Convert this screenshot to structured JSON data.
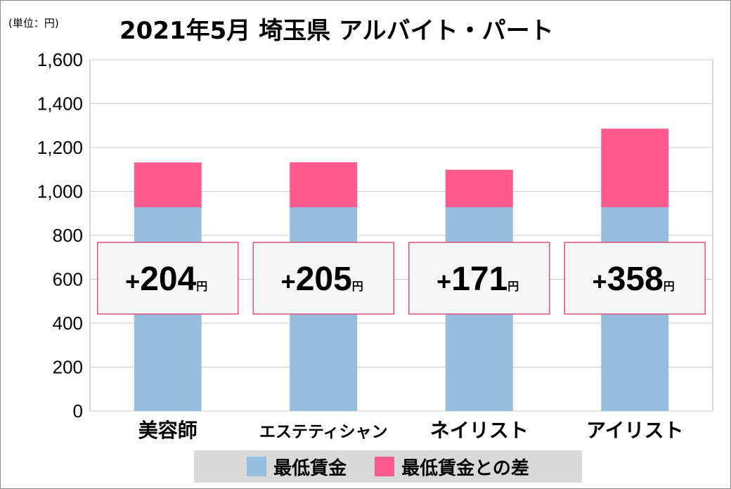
{
  "unit_label": "(単位：円)",
  "title": "2021年5月 埼玉県 アルバイト・パート",
  "colors": {
    "base": "#96bfdf",
    "diff": "#ff5b8f",
    "box_border": "#e0507f",
    "grid": "#cccccc",
    "legend_bg": "#d9d9d9"
  },
  "legend": [
    {
      "label": "最低賃金",
      "color": "#96bfdf"
    },
    {
      "label": "最低賃金との差",
      "color": "#ff5b8f"
    }
  ],
  "chart_data": {
    "type": "bar",
    "stacked": true,
    "title": "2021年5月 埼玉県 アルバイト・パート",
    "xlabel": "",
    "ylabel": "",
    "ylim": [
      0,
      1600
    ],
    "y_ticks": [
      "0",
      "200",
      "400",
      "600",
      "800",
      "1,000",
      "1,200",
      "1,400",
      "1,600"
    ],
    "y_tick_values": [
      0,
      200,
      400,
      600,
      800,
      1000,
      1200,
      1400,
      1600
    ],
    "grid": true,
    "legend_position": "bottom",
    "categories": [
      "美容師",
      "エステティシャン",
      "ネイリスト",
      "アイリスト"
    ],
    "series": [
      {
        "name": "最低賃金",
        "values": [
          928,
          928,
          928,
          928
        ]
      },
      {
        "name": "最低賃金との差",
        "values": [
          204,
          205,
          171,
          358
        ]
      }
    ],
    "annotations": [
      {
        "sign": "+",
        "value": "204",
        "unit": "円"
      },
      {
        "sign": "+",
        "value": "205",
        "unit": "円"
      },
      {
        "sign": "+",
        "value": "171",
        "unit": "円"
      },
      {
        "sign": "+",
        "value": "358",
        "unit": "円"
      }
    ]
  }
}
